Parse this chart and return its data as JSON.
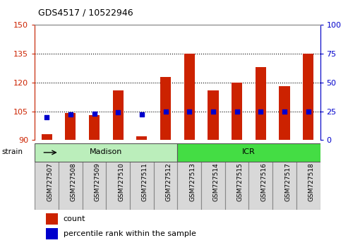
{
  "title": "GDS4517 / 10522946",
  "samples": [
    "GSM727507",
    "GSM727508",
    "GSM727509",
    "GSM727510",
    "GSM727511",
    "GSM727512",
    "GSM727513",
    "GSM727514",
    "GSM727515",
    "GSM727516",
    "GSM727517",
    "GSM727518"
  ],
  "count_values": [
    93,
    104,
    103,
    116,
    92,
    123,
    135,
    116,
    120,
    128,
    118,
    135
  ],
  "percentile_values": [
    20,
    22,
    23,
    24,
    22,
    25,
    25,
    25,
    25,
    25,
    25,
    25
  ],
  "ylim_left": [
    90,
    150
  ],
  "ylim_right": [
    0,
    100
  ],
  "yticks_left": [
    90,
    105,
    120,
    135,
    150
  ],
  "yticks_right": [
    0,
    25,
    50,
    75,
    100
  ],
  "bar_color": "#cc2200",
  "dot_color": "#0000cc",
  "axis_color_left": "#cc2200",
  "axis_color_right": "#0000cc",
  "spine_color": "#888888",
  "tickbox_color": "#d8d8d8",
  "groups": [
    {
      "label": "Madison",
      "start": 0,
      "end": 6,
      "color": "#bbeebb"
    },
    {
      "label": "ICR",
      "start": 6,
      "end": 12,
      "color": "#44dd44"
    }
  ],
  "strain_label": "strain",
  "legend_count": "count",
  "legend_percentile": "percentile rank within the sample",
  "tick_label_fontsize": 6.5,
  "bar_width": 0.45,
  "gridline_color": "#000000",
  "gridline_ticks": [
    105,
    120,
    135
  ]
}
